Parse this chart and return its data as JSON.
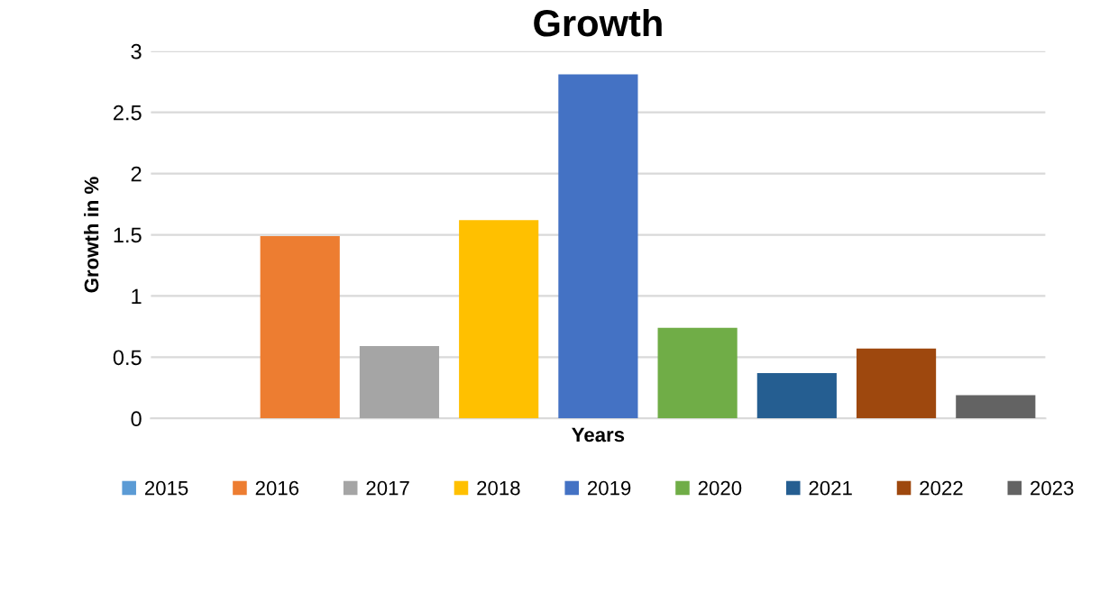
{
  "chart_data": {
    "type": "bar",
    "title": "Growth",
    "xlabel": "Years",
    "ylabel": "Growth in %",
    "categories": [
      null
    ],
    "series": [
      {
        "name": "2015",
        "color": "#5b9bd5",
        "values": [
          0
        ]
      },
      {
        "name": "2016",
        "color": "#ed7d31",
        "values": [
          1.49
        ]
      },
      {
        "name": "2017",
        "color": "#a5a5a5",
        "values": [
          0.59
        ]
      },
      {
        "name": "2018",
        "color": "#ffc000",
        "values": [
          1.62
        ]
      },
      {
        "name": "2019",
        "color": "#4472c4",
        "values": [
          2.81
        ]
      },
      {
        "name": "2020",
        "color": "#70ad47",
        "values": [
          0.74
        ]
      },
      {
        "name": "2021",
        "color": "#255e91",
        "values": [
          0.37
        ]
      },
      {
        "name": "2022",
        "color": "#9e480e",
        "values": [
          0.57
        ]
      },
      {
        "name": "2023",
        "color": "#636363",
        "values": [
          0.19
        ]
      }
    ],
    "ylim": [
      0,
      3
    ],
    "yticks": [
      0,
      {
        "value": 0.5,
        "label": "0.5"
      },
      1,
      {
        "value": 1.5,
        "label": "1.5"
      },
      2,
      {
        "value": 2.5,
        "label": "2.5"
      },
      3
    ],
    "grid": "y",
    "legend": "bottom"
  }
}
